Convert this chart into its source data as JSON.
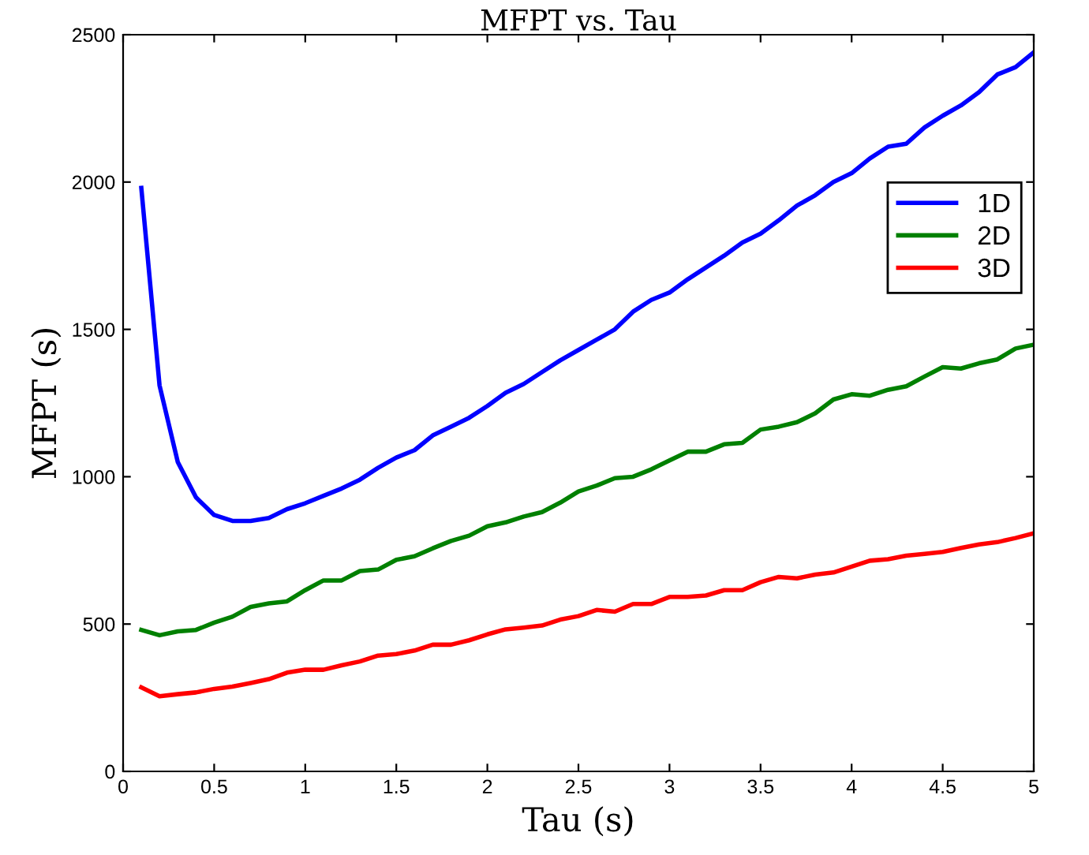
{
  "chart_data": {
    "type": "line",
    "title": "MFPT vs. Tau",
    "xlabel": "Tau (s)",
    "ylabel": "MFPT (s)",
    "x": [
      0.1,
      0.2,
      0.3,
      0.4,
      0.5,
      0.6,
      0.7,
      0.8,
      0.9,
      1.0,
      1.1,
      1.2,
      1.3,
      1.4,
      1.5,
      1.6,
      1.7,
      1.8,
      1.9,
      2.0,
      2.1,
      2.2,
      2.3,
      2.4,
      2.5,
      2.6,
      2.7,
      2.8,
      2.9,
      3.0,
      3.1,
      3.2,
      3.3,
      3.4,
      3.5,
      3.6,
      3.7,
      3.8,
      3.9,
      4.0,
      4.1,
      4.2,
      4.3,
      4.4,
      4.5,
      4.6,
      4.7,
      4.8,
      4.9,
      5.0
    ],
    "series": [
      {
        "name": "1D",
        "color": "#0000ff",
        "values": [
          1980,
          1310,
          1050,
          930,
          870,
          850,
          850,
          860,
          890,
          910,
          935,
          960,
          990,
          1030,
          1065,
          1090,
          1140,
          1170,
          1200,
          1240,
          1285,
          1315,
          1355,
          1395,
          1430,
          1465,
          1500,
          1560,
          1600,
          1625,
          1670,
          1710,
          1750,
          1795,
          1825,
          1870,
          1920,
          1955,
          2000,
          2030,
          2080,
          2120,
          2130,
          2185,
          2225,
          2260,
          2305,
          2365,
          2390,
          2440
        ]
      },
      {
        "name": "2D",
        "color": "#008000",
        "values": [
          480,
          462,
          475,
          480,
          505,
          525,
          558,
          570,
          577,
          615,
          648,
          648,
          680,
          685,
          718,
          730,
          757,
          782,
          800,
          832,
          845,
          865,
          880,
          912,
          950,
          970,
          995,
          1000,
          1025,
          1055,
          1085,
          1085,
          1110,
          1115,
          1160,
          1170,
          1185,
          1215,
          1262,
          1280,
          1275,
          1295,
          1307,
          1340,
          1372,
          1367,
          1385,
          1398,
          1435,
          1448
        ]
      },
      {
        "name": "3D",
        "color": "#ff0000",
        "values": [
          285,
          255,
          262,
          268,
          280,
          288,
          300,
          313,
          335,
          345,
          345,
          360,
          373,
          393,
          398,
          410,
          430,
          430,
          445,
          465,
          482,
          488,
          495,
          515,
          527,
          548,
          542,
          568,
          568,
          592,
          592,
          597,
          615,
          615,
          642,
          660,
          655,
          668,
          675,
          695,
          715,
          720,
          732,
          738,
          745,
          758,
          770,
          778,
          792,
          808
        ]
      }
    ],
    "xlim": [
      0,
      5
    ],
    "ylim": [
      0,
      2500
    ],
    "xticks": [
      0,
      0.5,
      1,
      1.5,
      2,
      2.5,
      3,
      3.5,
      4,
      4.5,
      5
    ],
    "yticks": [
      0,
      500,
      1000,
      1500,
      2000,
      2500
    ],
    "legend": "top right",
    "grid": false,
    "marker": "none",
    "line_style": "solid"
  }
}
